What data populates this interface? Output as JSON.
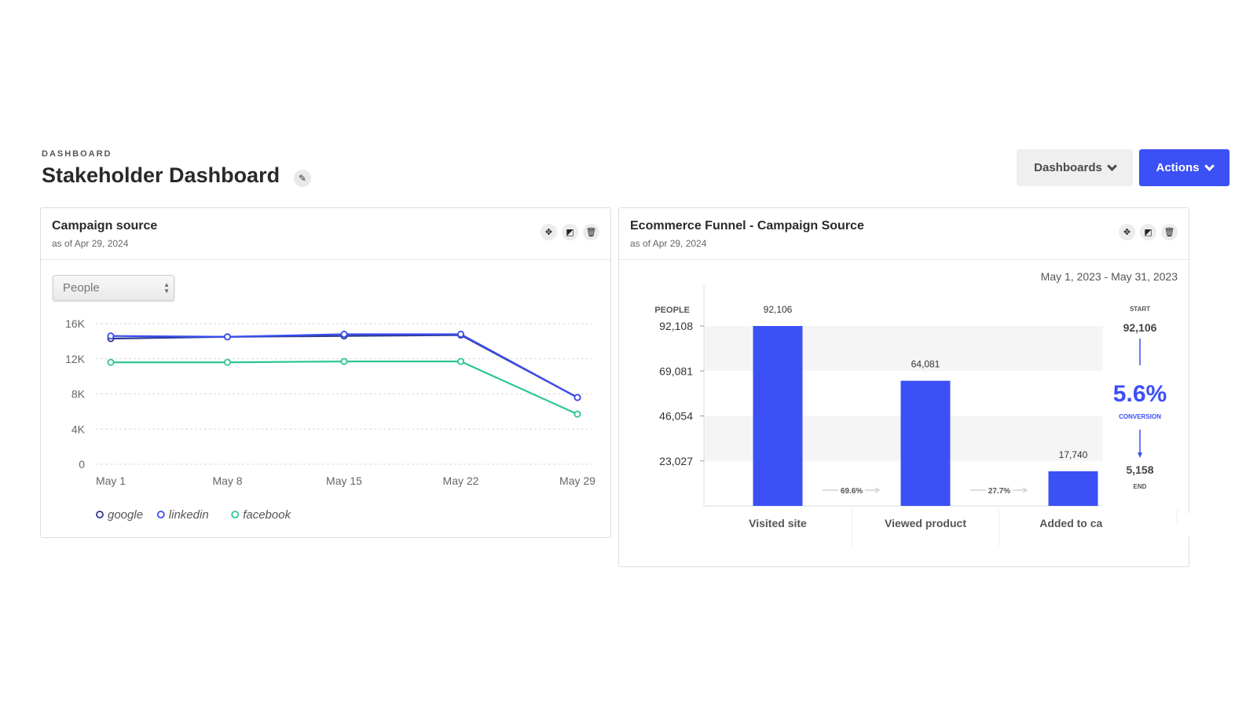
{
  "header": {
    "eyebrow": "DASHBOARD",
    "title": "Stakeholder Dashboard"
  },
  "toolbar": {
    "dashboards_label": "Dashboards",
    "actions_label": "Actions"
  },
  "icons": {
    "edit": "pencil-icon",
    "move": "move-icon",
    "expand": "expand-icon",
    "delete": "trash-icon"
  },
  "colors": {
    "accent": "#3b50f5",
    "google": "#2c3a8f",
    "linkedin": "#3a4df0",
    "facebook": "#2fc596"
  },
  "campaign_card": {
    "title": "Campaign source",
    "subtitle": "as of Apr 29, 2024",
    "select_value": "People",
    "chart_data": {
      "type": "line",
      "x": [
        "May 1",
        "May 8",
        "May 15",
        "May 22",
        "May 29"
      ],
      "ylim": [
        0,
        16000
      ],
      "yticks": [
        "16K",
        "12K",
        "8K",
        "4K",
        "0"
      ],
      "grid": true,
      "legend_position": "bottom-left",
      "series": [
        {
          "name": "google",
          "color": "#2c3a8f",
          "values": [
            14300,
            14500,
            14600,
            14700,
            7600
          ]
        },
        {
          "name": "linkedin",
          "color": "#3a4df0",
          "values": [
            14600,
            14500,
            14800,
            14800,
            7600
          ]
        },
        {
          "name": "facebook",
          "color": "#2fc596",
          "values": [
            11600,
            11600,
            11700,
            11700,
            5700
          ]
        }
      ]
    }
  },
  "funnel_card": {
    "title": "Ecommerce Funnel - Campaign Source",
    "subtitle": "as of Apr 29, 2024",
    "date_range": "May 1, 2023 - May 31, 2023",
    "chart_data": {
      "type": "bar",
      "ylabel": "PEOPLE",
      "ylim": [
        0,
        92108
      ],
      "yticks": [
        "92,108",
        "69,081",
        "46,054",
        "23,027"
      ],
      "categories": [
        "Visited site",
        "Viewed product",
        "Added to car"
      ],
      "values": [
        92106,
        64081,
        17740
      ],
      "value_labels": [
        "92,106",
        "64,081",
        "17,740"
      ],
      "step_conversions": [
        "69.6%",
        "27.7%"
      ],
      "color": "#3b50f5"
    },
    "summary": {
      "start_label": "START",
      "start_value": "92,106",
      "conversion_value": "5.6%",
      "conversion_label": "CONVERSION",
      "end_value": "5,158",
      "end_label": "END"
    }
  }
}
